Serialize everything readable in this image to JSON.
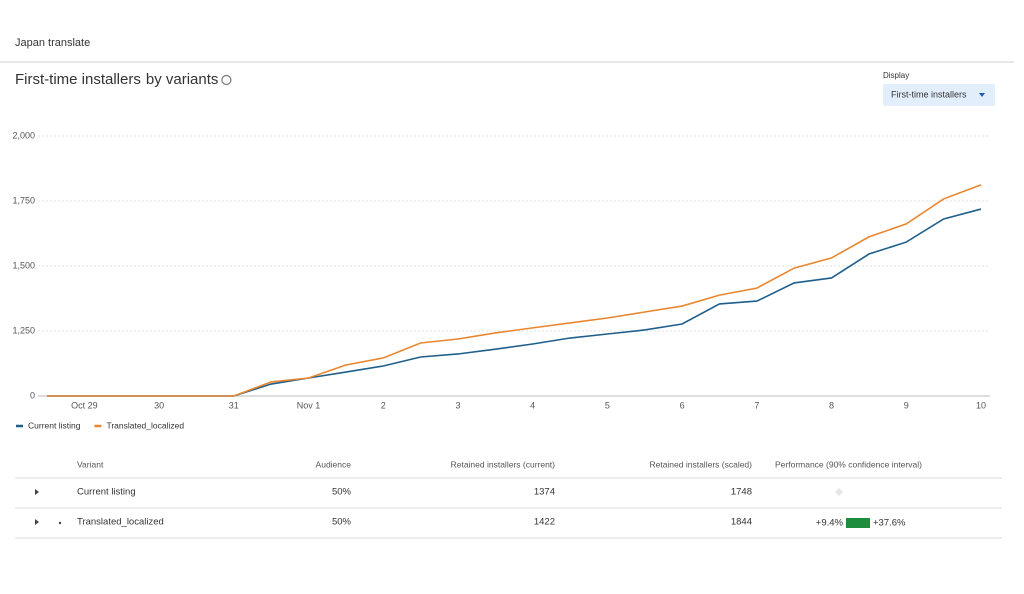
{
  "header": {
    "title": "Japan translate"
  },
  "chart_data": {
    "type": "line",
    "title": "First-time installers",
    "subtitle": "by variants",
    "display_label": "Display",
    "display_value": "First-time installers",
    "categories": [
      null,
      "Oct 29",
      null,
      "30",
      null,
      "31",
      null,
      "Nov 1",
      null,
      "2",
      null,
      "3",
      null,
      "4",
      null,
      "5",
      null,
      "6",
      null,
      "7",
      null,
      "8",
      null,
      "9",
      null,
      "10"
    ],
    "series": [
      {
        "name": "Current listing",
        "color": "#1f5f8b",
        "values": [
          0,
          0,
          0,
          0,
          0,
          0,
          230,
          346,
          460,
          577,
          750,
          808,
          900,
          1000,
          1115,
          1192,
          1254,
          1277,
          1354,
          1365,
          1435,
          1454,
          1546,
          1592,
          1681,
          1719
        ]
      },
      {
        "name": "Translated_localized",
        "color": "#e8872f",
        "values": [
          0,
          0,
          0,
          0,
          0,
          0,
          270,
          346,
          596,
          731,
          1019,
          1096,
          1212,
          1262,
          1281,
          1300,
          1323,
          1346,
          1388,
          1415,
          1492,
          1531,
          1612,
          1662,
          1758,
          1812
        ]
      }
    ],
    "ylim": [
      0,
      2000
    ],
    "yticks": [
      0,
      {
        "value": 1250,
        "label": "1,250"
      },
      {
        "value": 1500,
        "label": "1,500"
      },
      {
        "value": 1750,
        "label": "1,750"
      },
      {
        "value": 2000,
        "label": "2,000"
      }
    ],
    "grid": true,
    "legend": "bottom-left"
  },
  "table": {
    "headers": [
      "Variant",
      "Audience",
      "Retained installers (current)",
      "Retained installers (scaled)",
      "Performance (90% confidence interval)"
    ],
    "rows": [
      {
        "variant": "Current listing",
        "audience": "50%",
        "retained_current": "1374",
        "retained_scaled": "1748"
      },
      {
        "variant": "Translated_localized",
        "audience": "50%",
        "retained_current": "1422",
        "retained_scaled": "1844",
        "ci_low": "+9.4%",
        "ci_high": "+37.6%"
      }
    ]
  }
}
